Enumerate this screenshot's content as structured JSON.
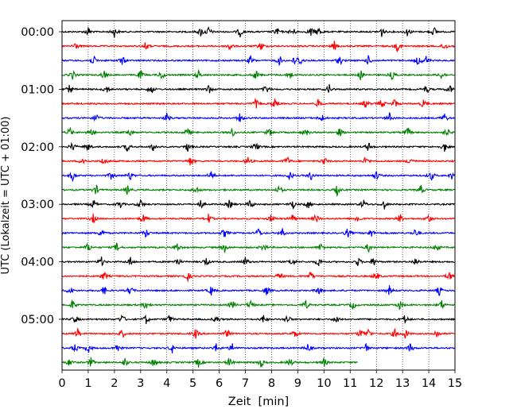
{
  "chart_data": {
    "type": "line",
    "title": "",
    "xlabel": "Zeit  [min]",
    "ylabel": "UTC (Lokalzeit = UTC + 01:00)",
    "xlim": [
      0,
      15
    ],
    "xticks": [
      0,
      1,
      2,
      3,
      4,
      5,
      6,
      7,
      8,
      9,
      10,
      11,
      12,
      13,
      14,
      15
    ],
    "xtick_labels": [
      "0",
      "1",
      "2",
      "3",
      "4",
      "5",
      "6",
      "7",
      "8",
      "9",
      "10",
      "11",
      "12",
      "13",
      "14",
      "15"
    ],
    "ytick_labels": [
      "00:00",
      "01:00",
      "02:00",
      "03:00",
      "04:00",
      "05:00"
    ],
    "ytick_trace_index": [
      0,
      4,
      8,
      12,
      16,
      20
    ],
    "grid": "vertical-dotted",
    "trace_duration_min": 15,
    "colors": [
      "#000000",
      "#ff0000",
      "#0000ff",
      "#008000"
    ],
    "traces": [
      {
        "start_utc": "00:00",
        "end_min": 15,
        "color": "#000000",
        "events_min": [
          1.0,
          2.0,
          5.3,
          5.6,
          6.8,
          8.2,
          8.8,
          9.5,
          9.8,
          12.2,
          13.2,
          14.2
        ]
      },
      {
        "start_utc": "00:15",
        "end_min": 15,
        "color": "#ff0000",
        "events_min": [
          0.5,
          3.2,
          6.4,
          7.6,
          10.4,
          12.8,
          14.6
        ]
      },
      {
        "start_utc": "00:30",
        "end_min": 15,
        "color": "#0000ff",
        "events_min": [
          1.2,
          2.3,
          7.2,
          8.3,
          8.9,
          9.1,
          10.6,
          11.7,
          13.6,
          13.9
        ]
      },
      {
        "start_utc": "00:45",
        "end_min": 15,
        "color": "#008000",
        "events_min": [
          0.4,
          1.6,
          3.0,
          3.8,
          5.2,
          7.4,
          8.7,
          11.4,
          12.6,
          14.5
        ]
      },
      {
        "start_utc": "01:00",
        "end_min": 15,
        "color": "#000000",
        "events_min": [
          0.3,
          1.7,
          3.4,
          5.6,
          7.8,
          10.2,
          13.9,
          14.8
        ]
      },
      {
        "start_utc": "01:15",
        "end_min": 15,
        "color": "#ff0000",
        "events_min": [
          7.4,
          8.1,
          9.8,
          11.6,
          12.2,
          12.7,
          13.8
        ]
      },
      {
        "start_utc": "01:30",
        "end_min": 15,
        "color": "#0000ff",
        "events_min": [
          1.3,
          4.0,
          6.8,
          9.9,
          12.5,
          14.6
        ]
      },
      {
        "start_utc": "01:45",
        "end_min": 15,
        "color": "#008000",
        "events_min": [
          0.3,
          1.1,
          2.6,
          4.8,
          6.5,
          7.9,
          9.3,
          10.6,
          13.2,
          14.7
        ]
      },
      {
        "start_utc": "02:00",
        "end_min": 15,
        "color": "#000000",
        "events_min": [
          0.4,
          1.0,
          2.5,
          3.5,
          4.8,
          7.4,
          11.7,
          14.6
        ]
      },
      {
        "start_utc": "02:15",
        "end_min": 15,
        "color": "#ff0000",
        "events_min": [
          0.8,
          1.6,
          4.9,
          7.1,
          8.6,
          10.0,
          11.6,
          13.3
        ]
      },
      {
        "start_utc": "02:30",
        "end_min": 15,
        "color": "#0000ff",
        "events_min": [
          0.4,
          1.9,
          2.6,
          5.7,
          8.7,
          9.5,
          12.0,
          14.1,
          14.9
        ]
      },
      {
        "start_utc": "02:45",
        "end_min": 15,
        "color": "#008000",
        "events_min": [
          1.3,
          2.5,
          5.1,
          8.3,
          10.5,
          13.7
        ]
      },
      {
        "start_utc": "03:00",
        "end_min": 15,
        "color": "#000000",
        "events_min": [
          1.2,
          2.2,
          3.0,
          5.3,
          6.4,
          7.2,
          8.8,
          9.4,
          11.5,
          12.3
        ]
      },
      {
        "start_utc": "03:15",
        "end_min": 15,
        "color": "#ff0000",
        "events_min": [
          1.2,
          3.1,
          5.6,
          8.0,
          8.8,
          9.7,
          11.3,
          12.9,
          14.0
        ]
      },
      {
        "start_utc": "03:30",
        "end_min": 15,
        "color": "#0000ff",
        "events_min": [
          1.5,
          3.2,
          6.2,
          7.5,
          8.4,
          10.9,
          11.8,
          13.5
        ]
      },
      {
        "start_utc": "03:45",
        "end_min": 15,
        "color": "#008000",
        "events_min": [
          1.0,
          2.1,
          4.4,
          6.2,
          7.7,
          9.9,
          11.7,
          14.3
        ]
      },
      {
        "start_utc": "04:00",
        "end_min": 15,
        "color": "#000000",
        "events_min": [
          1.5,
          2.6,
          4.4,
          5.5,
          7.0,
          8.8,
          9.8,
          11.3,
          11.9,
          13.5
        ]
      },
      {
        "start_utc": "04:15",
        "end_min": 15,
        "color": "#ff0000",
        "events_min": [
          1.6,
          4.8,
          8.3,
          9.5,
          12.0,
          14.8
        ]
      },
      {
        "start_utc": "04:30",
        "end_min": 15,
        "color": "#0000ff",
        "events_min": [
          0.3,
          1.6,
          2.6,
          5.7,
          7.8,
          9.8,
          12.5,
          14.4
        ]
      },
      {
        "start_utc": "04:45",
        "end_min": 15,
        "color": "#008000",
        "events_min": [
          0.4,
          3.2,
          6.5,
          7.2,
          9.3,
          11.1,
          12.9,
          14.5
        ]
      },
      {
        "start_utc": "05:00",
        "end_min": 15,
        "color": "#000000",
        "events_min": [
          0.5,
          2.3,
          3.2,
          4.1,
          5.9,
          7.7,
          8.6,
          10.5,
          13.1
        ]
      },
      {
        "start_utc": "05:15",
        "end_min": 15,
        "color": "#ff0000",
        "events_min": [
          0.6,
          2.3,
          5.1,
          6.3,
          8.9,
          11.4,
          11.7,
          12.7,
          13.1,
          14.3
        ]
      },
      {
        "start_utc": "05:30",
        "end_min": 15,
        "color": "#0000ff",
        "events_min": [
          0.5,
          1.0,
          2.1,
          4.2,
          5.9,
          6.5,
          9.4,
          11.6,
          13.3
        ]
      },
      {
        "start_utc": "05:45",
        "end_min": 11.3,
        "color": "#008000",
        "events_min": [
          0.3,
          1.1,
          2.4,
          3.5,
          5.2,
          6.4,
          7.6,
          8.7,
          10.0
        ]
      }
    ]
  }
}
